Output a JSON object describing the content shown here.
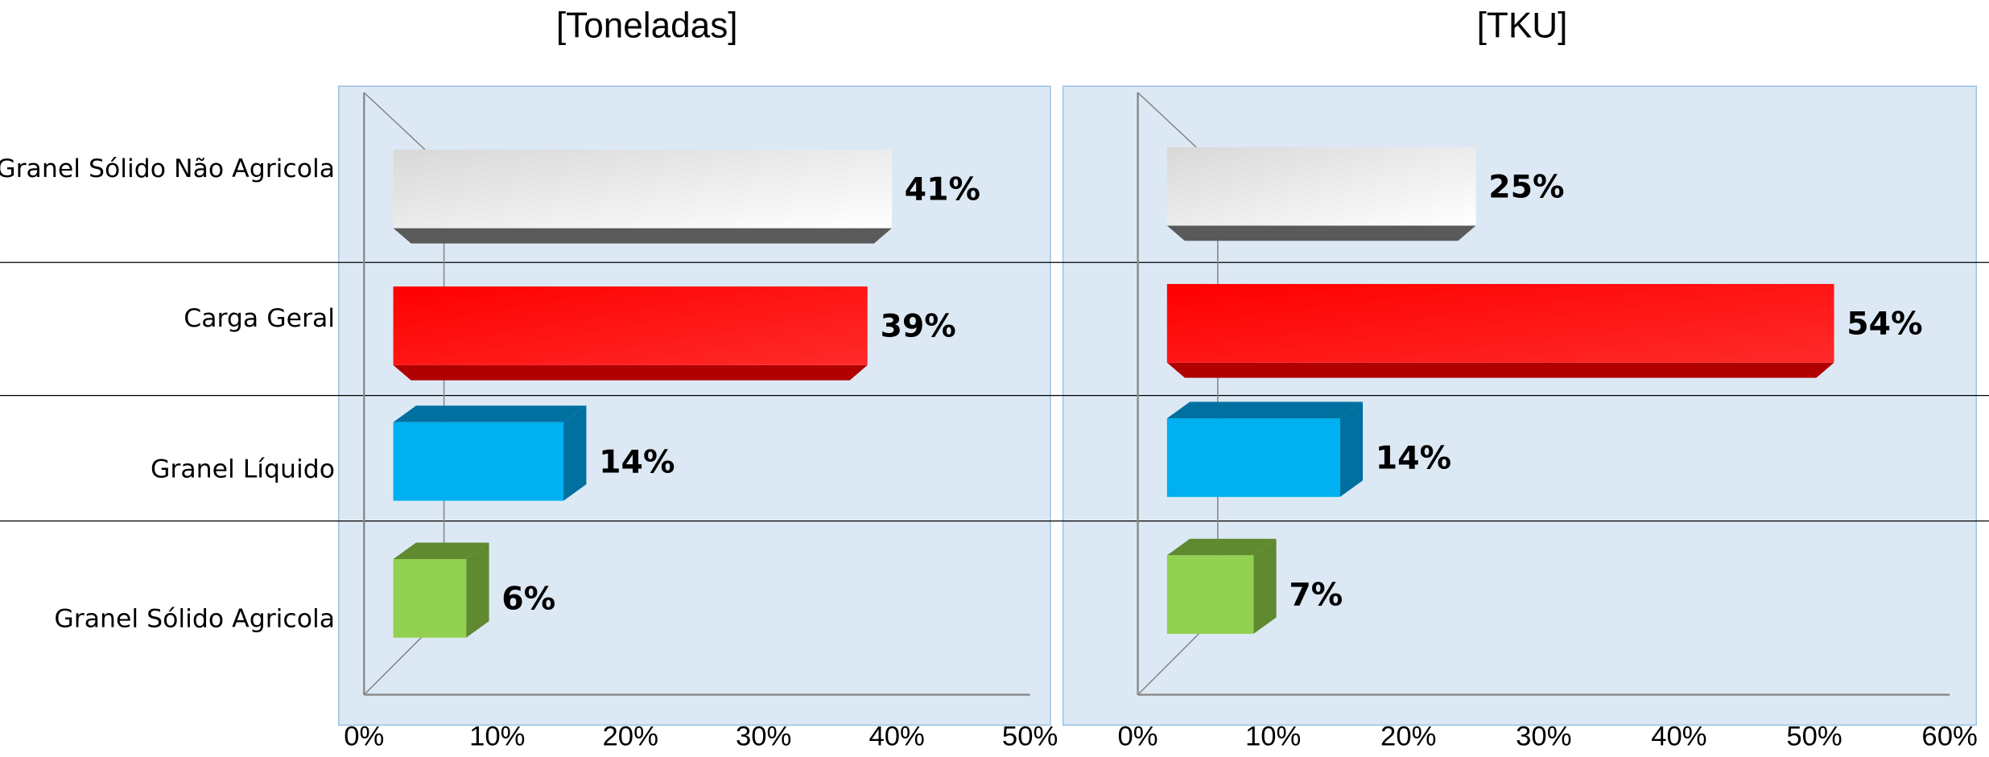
{
  "chart_data": [
    {
      "type": "bar3d",
      "title": "[Toneladas]",
      "categories": [
        "Granel Sólido Não Agricola",
        "Carga Geral",
        "Granel Líquido",
        "Granel Sólido Agricola"
      ],
      "values": [
        41,
        39,
        14,
        6
      ],
      "value_labels": [
        "41%",
        "39%",
        "14%",
        "6%"
      ],
      "colors": [
        "#eeeeee",
        "#ff0000",
        "#00b0f0",
        "#92d050"
      ],
      "xlim": [
        0,
        50
      ],
      "xticks": [
        {
          "value": 0,
          "label": "0%"
        },
        {
          "value": 10,
          "label": "10%"
        },
        {
          "value": 20,
          "label": "20%"
        },
        {
          "value": 30,
          "label": "30%"
        },
        {
          "value": 40,
          "label": "40%"
        },
        {
          "value": 50,
          "label": "50%"
        }
      ]
    },
    {
      "type": "bar3d",
      "title": "[TKU]",
      "values": [
        25,
        54,
        14,
        7
      ],
      "value_labels": [
        "25%",
        "54%",
        "14%",
        "7%"
      ],
      "colors": [
        "#eeeeee",
        "#ff0000",
        "#00b0f0",
        "#92d050"
      ],
      "xlim": [
        0,
        60
      ],
      "xticks": [
        {
          "value": 0,
          "label": "0%"
        },
        {
          "value": 10,
          "label": "10%"
        },
        {
          "value": 20,
          "label": "20%"
        },
        {
          "value": 30,
          "label": "30%"
        },
        {
          "value": 40,
          "label": "40%"
        },
        {
          "value": 50,
          "label": "50%"
        },
        {
          "value": 60,
          "label": "60%"
        }
      ]
    }
  ]
}
